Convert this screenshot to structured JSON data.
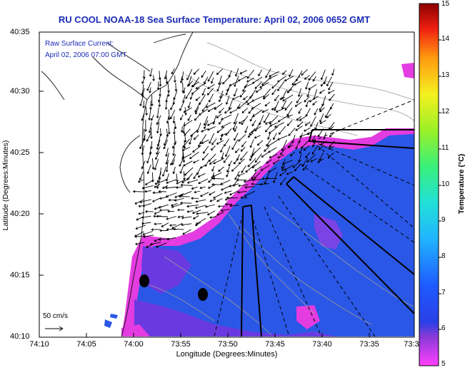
{
  "title": "RU COOL  NOAA-18  Sea Surface Temperature:  April 02, 2006 0652 GMT",
  "current_label_line1": "Raw Surface Current:",
  "current_label_line2": "April 02, 2006 07:00 GMT",
  "scale_label": "50 cm/s",
  "x_axis_title": "Longitude (Degrees:Minutes)",
  "y_axis_title": "Latitude (Degrees:Minutes)",
  "colorbar_title": "Temperature (°C)",
  "x_ticks": [
    "74:10",
    "74:05",
    "74:00",
    "73:55",
    "73:50",
    "73:45",
    "73:40",
    "73:35",
    "73:3"
  ],
  "y_ticks": [
    "40:35",
    "40:30",
    "40:25",
    "40:20",
    "40:15",
    "40:10"
  ],
  "colorbar_ticks": [
    "15",
    "14",
    "13",
    "12",
    "11",
    "10",
    "9",
    "8",
    "7",
    "6",
    "5"
  ],
  "colors": {
    "title": "#1c2bb6",
    "water_main": "#2a57e6",
    "water_cold": "#6a3ae0",
    "front_magenta": "#e33ce0"
  }
}
